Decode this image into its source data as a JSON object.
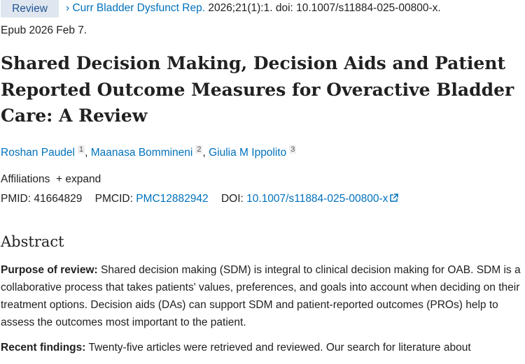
{
  "badge": "Review",
  "citation": {
    "chevron": "›",
    "journal": "Curr Bladder Dysfunct Rep.",
    "rest": "2026;21(1):1. doi: 10.1007/s11884-025-00800-x.",
    "epub": "Epub 2026 Feb 7."
  },
  "title": "Shared Decision Making, Decision Aids and Patient Reported Outcome Measures for Overactive Bladder Care: A Review",
  "authors": [
    {
      "name": "Roshan Paudel",
      "aff": "1"
    },
    {
      "name": "Maanasa Bommineni",
      "aff": "2"
    },
    {
      "name": "Giulia M Ippolito",
      "aff": "3"
    }
  ],
  "affiliations": {
    "label": "Affiliations",
    "expand": "+ expand"
  },
  "ids": {
    "pmid_label": "PMID:",
    "pmid": "41664829",
    "pmcid_label": "PMCID:",
    "pmcid": "PMC12882942",
    "doi_label": "DOI:",
    "doi": "10.1007/s11884-025-00800-x"
  },
  "abstract": {
    "heading": "Abstract",
    "p1_label": "Purpose of review:",
    "p1": " Shared decision making (SDM) is integral to clinical decision making for OAB. SDM is a collaborative process that takes patients' values, preferences, and goals into account when deciding on their treatment options. Decision aids (DAs) can support SDM and patient-reported outcomes (PROs) help to assess the outcomes most important to the patient.",
    "p2_label": "Recent findings:",
    "p2": " Twenty-five articles were retrieved and reviewed. Our search for literature about"
  }
}
